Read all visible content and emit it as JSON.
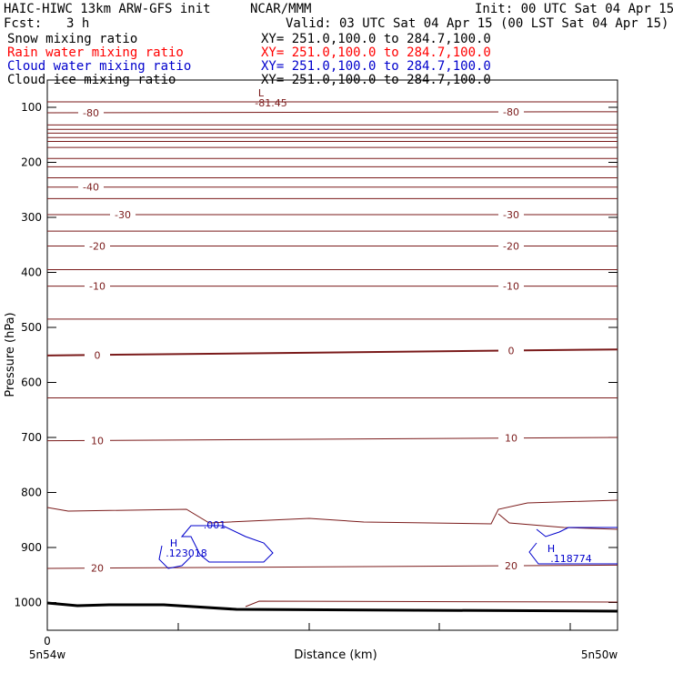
{
  "header": {
    "model": "HAIC-HIWC 13km ARW-GFS init",
    "org": "NCAR/MMM",
    "init": "Init: 00 UTC Sat 04 Apr 15",
    "fcst_label": "Fcst:",
    "fcst_value": "3 h",
    "valid": "Valid: 03 UTC Sat 04 Apr 15 (00 LST Sat 04 Apr 15)"
  },
  "fields": [
    {
      "name": "Snow mixing ratio",
      "xy": "XY= 251.0,100.0 to 284.7,100.0",
      "color": "#000000"
    },
    {
      "name": "Rain water mixing ratio",
      "xy": "XY= 251.0,100.0 to 284.7,100.0",
      "color": "#ff0000"
    },
    {
      "name": "Cloud water mixing ratio",
      "xy": "XY= 251.0,100.0 to 284.7,100.0",
      "color": "#0000cc"
    },
    {
      "name": "Cloud ice mixing ratio",
      "xy": "XY= 251.0,100.0 to 284.7,100.0",
      "color": "#000000"
    }
  ],
  "chart_data": {
    "type": "line",
    "ylabel": "Pressure (hPa)",
    "xlabel": "Distance (km)",
    "y_ticks": [
      100,
      200,
      300,
      400,
      500,
      600,
      700,
      800,
      900,
      1000
    ],
    "x_tick_label": "0",
    "x_left_label": "5n54w",
    "x_right_label": "5n50w",
    "isotherm_color": "#7a1a1a",
    "cloud_color": "#0000cc",
    "temperature_contours": [
      {
        "value": "-80",
        "y_left": 110,
        "y_right": 108,
        "labels_x": [
          "L",
          "R"
        ]
      },
      {
        "value": "-40",
        "y_left": 245,
        "y_right": 245,
        "labels_x": [
          "L"
        ]
      },
      {
        "value": "-30",
        "y_left": 295,
        "y_right": 295,
        "labels_x": [
          "L",
          "R"
        ]
      },
      {
        "value": "-20",
        "y_left": 352,
        "y_right": 352,
        "labels_x": [
          "L",
          "R"
        ]
      },
      {
        "value": "-10",
        "y_left": 425,
        "y_right": 425,
        "labels_x": [
          "L",
          "R"
        ]
      },
      {
        "value": "0",
        "y_left": 551,
        "y_right": 540,
        "labels_x": [
          "L",
          "R"
        ]
      },
      {
        "value": "10",
        "y_left": 706,
        "y_right": 700,
        "labels_x": [
          "L",
          "R"
        ]
      },
      {
        "value": "20",
        "y_left": 938,
        "y_right": 932,
        "labels_x": [
          "L",
          "R"
        ]
      }
    ],
    "temperature_min_marker": {
      "symbol": "L",
      "value": "-81.45"
    },
    "cloud_water": [
      {
        "symbol": "H",
        "value": ".123018"
      },
      {
        "symbol": "H",
        "value": ".118774"
      }
    ],
    "cloud_water_contour_label": ".001"
  }
}
